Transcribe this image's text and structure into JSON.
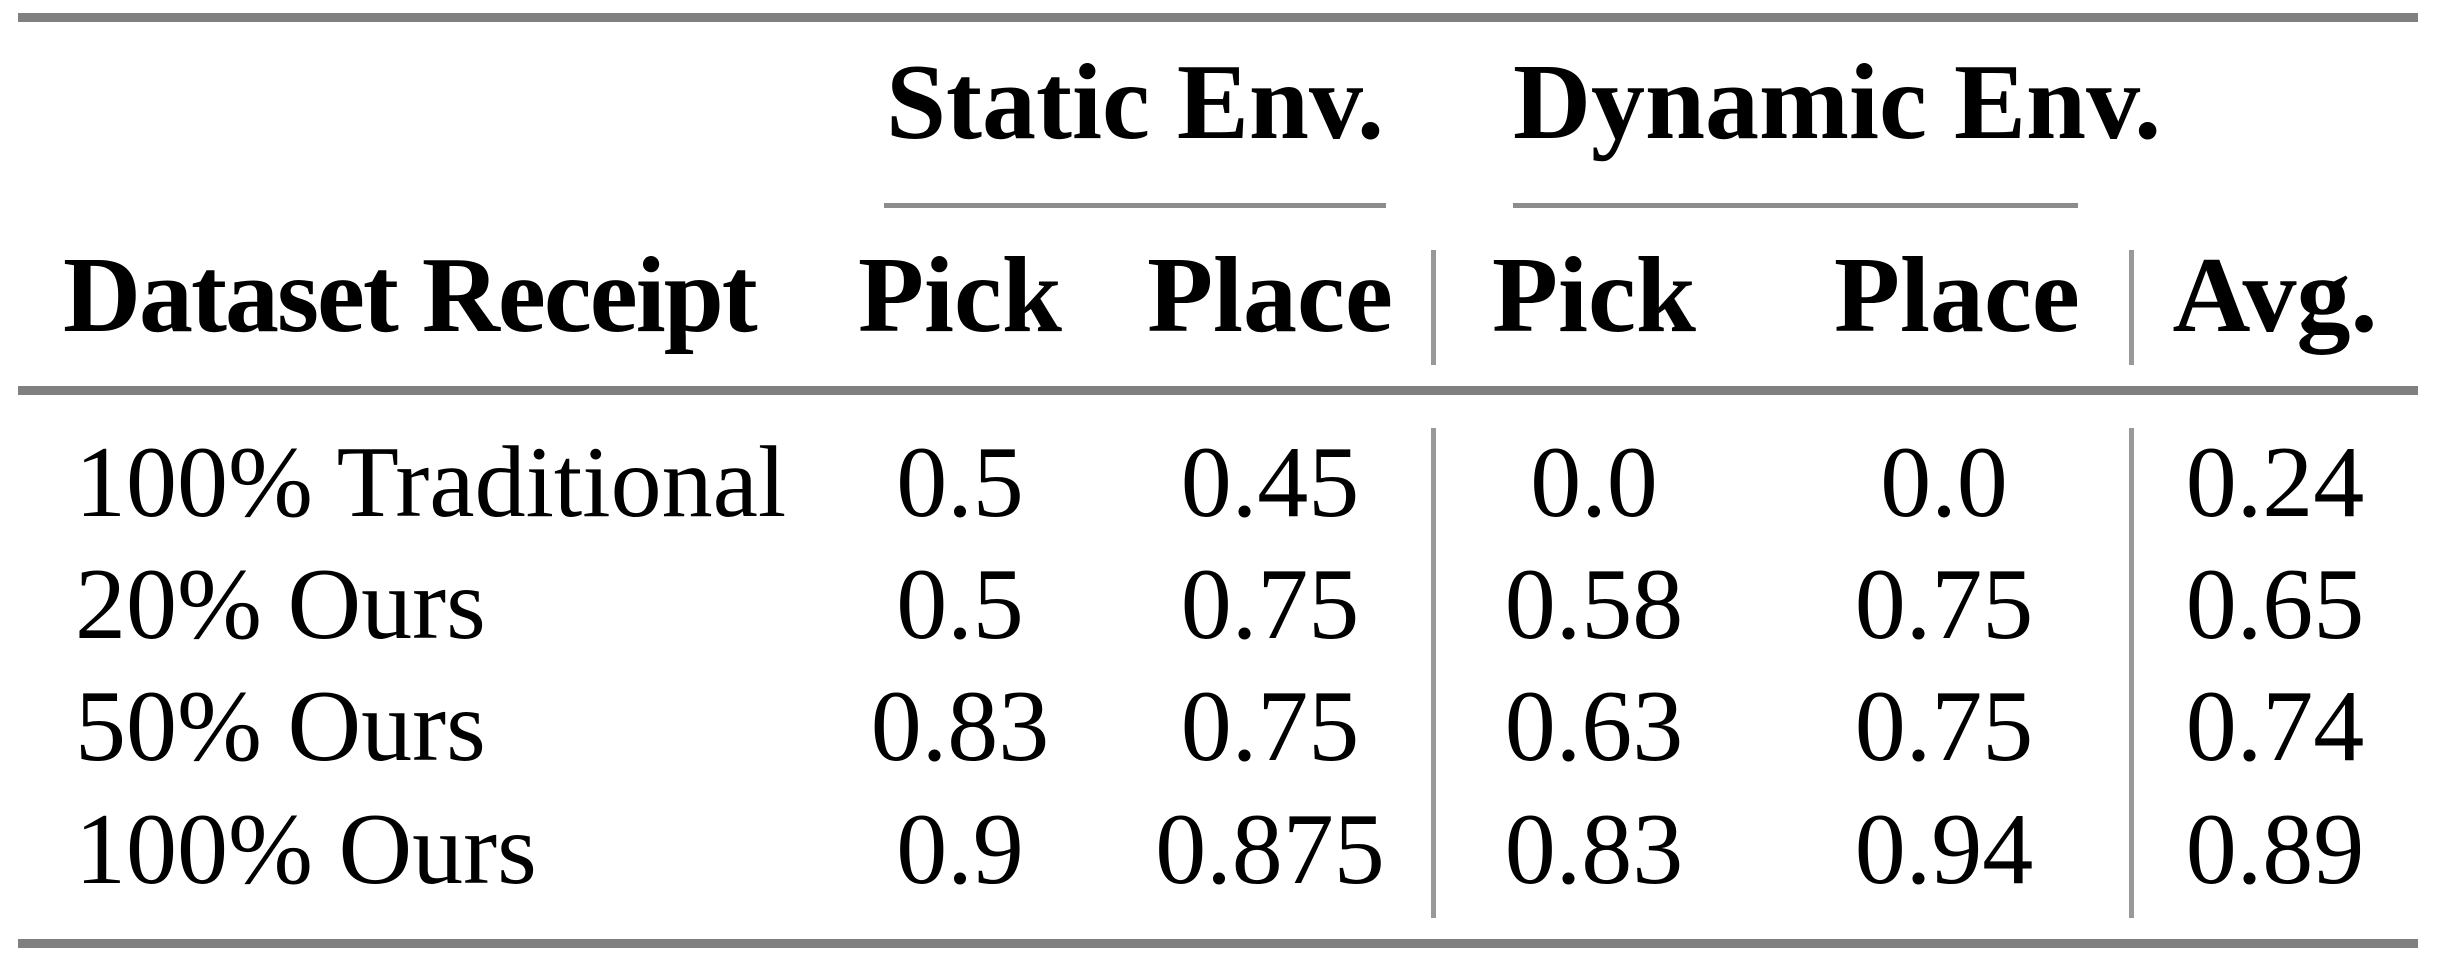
{
  "table": {
    "column_groups": {
      "static_label": "Static Env.",
      "dynamic_label": "Dynamic Env."
    },
    "header": {
      "row_label": "Dataset Receipt",
      "static_pick": "Pick",
      "static_place": "Place",
      "dynamic_pick": "Pick",
      "dynamic_place": "Place",
      "avg": "Avg."
    },
    "rows": [
      {
        "label": "100% Traditional",
        "values": [
          "0.5",
          "0.45",
          "0.0",
          "0.0",
          "0.24"
        ]
      },
      {
        "label": "20% Ours",
        "values": [
          "0.5",
          "0.75",
          "0.58",
          "0.75",
          "0.65"
        ]
      },
      {
        "label": "50% Ours",
        "values": [
          "0.83",
          "0.75",
          "0.63",
          "0.75",
          "0.74"
        ]
      },
      {
        "label": "100% Ours",
        "values": [
          "0.9",
          "0.875",
          "0.83",
          "0.94",
          "0.89"
        ]
      }
    ],
    "colors": {
      "heavy_rule": "#808080",
      "light_rule": "#8c8c8c",
      "vertical_rule": "#999999",
      "text": "#000000",
      "background": "#ffffff"
    }
  }
}
